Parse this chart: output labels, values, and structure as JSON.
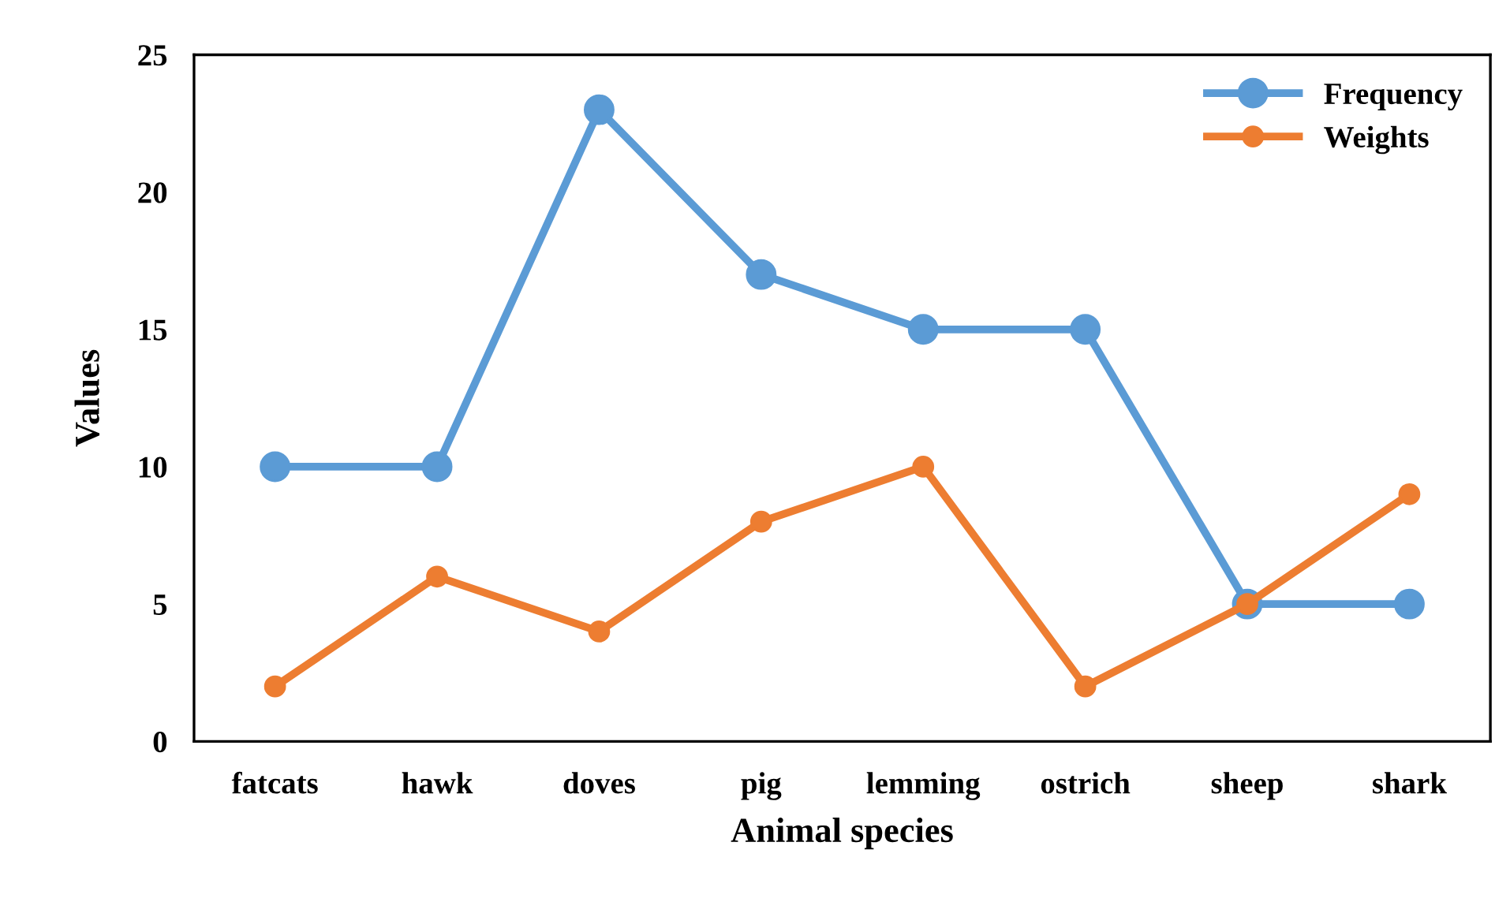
{
  "chart_data": {
    "type": "line",
    "xlabel": "Animal species",
    "ylabel": "Values",
    "categories": [
      "fatcats",
      "hawk",
      "doves",
      "pig",
      "lemming",
      "ostrich",
      "sheep",
      "shark"
    ],
    "series": [
      {
        "name": "Frequency",
        "color": "#5b9bd5",
        "values": [
          10,
          10,
          23,
          17,
          15,
          15,
          5,
          5
        ]
      },
      {
        "name": "Weights",
        "color": "#ed7d31",
        "values": [
          2,
          6,
          4,
          8,
          10,
          2,
          5,
          9
        ]
      }
    ],
    "ylim": [
      0,
      25
    ],
    "yticks": [
      0,
      5,
      10,
      15,
      20,
      25
    ],
    "grid": false,
    "legend": "top right",
    "marker": "circle",
    "line_style": "solid"
  }
}
